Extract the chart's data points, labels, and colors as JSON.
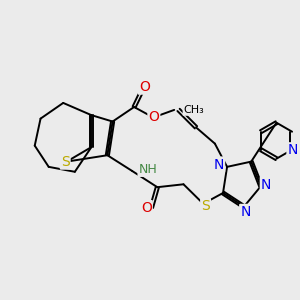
{
  "background_color": "#ebebeb",
  "figsize": [
    3.0,
    3.0
  ],
  "dpi": 100,
  "atom_colors": {
    "C": "#000000",
    "N": "#0000ee",
    "O": "#dd0000",
    "S": "#bbaa00",
    "H": "#448844"
  },
  "bond_color": "#000000",
  "bond_width": 1.4,
  "font_size_atoms": 9
}
